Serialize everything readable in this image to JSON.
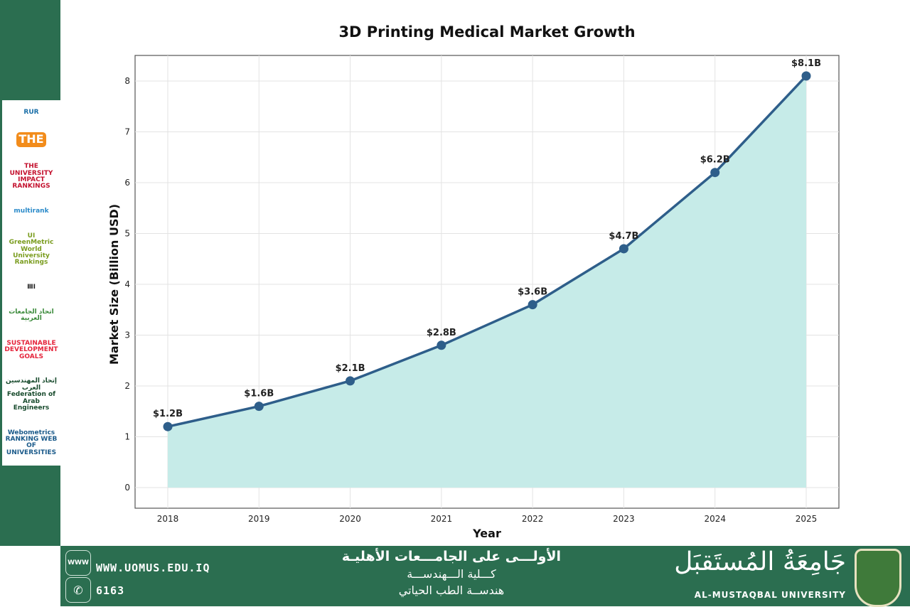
{
  "sidebar": {
    "logos": [
      "RUR",
      "THE",
      "THE UNIVERSITY IMPACT RANKINGS",
      "multirank",
      "UI GreenMetric World University Rankings",
      "ⅢⅠ",
      "اتحاد الجامعات العربية",
      "SUSTAINABLE DEVELOPMENT GOALS",
      "إتحاد المهندسين العرب Federation of Arab Engineers",
      "Webometrics RANKING WEB OF UNIVERSITIES"
    ]
  },
  "footer": {
    "website": "WWW.UOMUS.EDU.IQ",
    "phone": "6163",
    "web_icon_label": "WWW",
    "arabic_line1": "الأولـــى على الجامـــعات الأهليـة",
    "arabic_line2": "كـــلية الـــهندســـة",
    "arabic_line3": "هندســة الطب الحياتي",
    "brand_arabic": "جَامِعَةُ المُستَقبَل",
    "brand_english": "AL-MUSTAQBAL UNIVERSITY"
  },
  "colors": {
    "line": "#2e5e8a",
    "fill": "#c6ebe8",
    "green": "#2b6e50"
  },
  "chart_data": {
    "type": "area",
    "title": "3D Printing Medical Market Growth",
    "xlabel": "Year",
    "ylabel": "Market Size (Billion USD)",
    "x": [
      2018,
      2019,
      2020,
      2021,
      2022,
      2023,
      2024,
      2025
    ],
    "values": [
      1.2,
      1.6,
      2.1,
      2.8,
      3.6,
      4.7,
      6.2,
      8.1
    ],
    "data_labels": [
      "$1.2B",
      "$1.6B",
      "$2.1B",
      "$2.8B",
      "$3.6B",
      "$4.7B",
      "$6.2B",
      "$8.1B"
    ],
    "yticks": [
      0,
      1,
      2,
      3,
      4,
      5,
      6,
      7,
      8
    ],
    "ylim": [
      -0.4,
      8.5
    ],
    "grid": true,
    "markers": true
  }
}
